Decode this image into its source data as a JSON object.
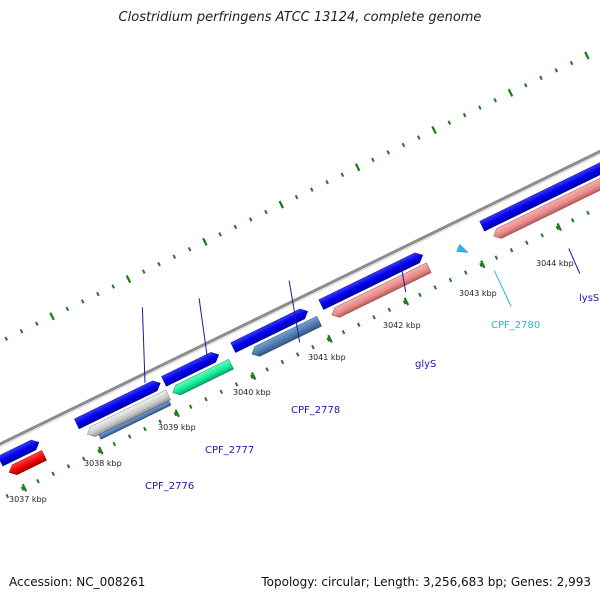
{
  "title": "Clostridium perfringens ATCC 13124, complete genome",
  "footer": {
    "accession": "Accession: NC_008261",
    "summary": "Topology: circular; Length: 3,256,683 bp; Genes: 2,993"
  },
  "colors": {
    "forward_cds": "#0000ee",
    "reverse_cds": "#ee9090",
    "rna": "#ee0000",
    "backbone": "#8c8c8c",
    "tick": "#207a20",
    "label_blue": "#1a1aa8",
    "label_cyan": "#28b4d8"
  },
  "tick_labels": [
    "3037 kbp",
    "3038 kbp",
    "3039 kbp",
    "3040 kbp",
    "3041 kbp",
    "3042 kbp",
    "3043 kbp",
    "3044 kbp"
  ],
  "gene_labels": [
    {
      "text": "CPF_2776",
      "color": "label_blue"
    },
    {
      "text": "CPF_2777",
      "color": "label_blue"
    },
    {
      "text": "CPF_2778",
      "color": "label_blue"
    },
    {
      "text": "glyS",
      "color": "label_blue"
    },
    {
      "text": "CPF_2780",
      "color": "label_cyan"
    },
    {
      "text": "lysS",
      "color": "label_blue"
    }
  ]
}
